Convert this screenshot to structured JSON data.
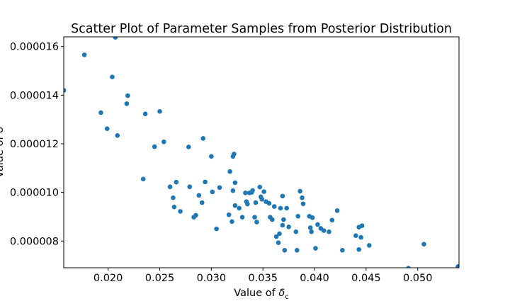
{
  "chart_data": {
    "type": "scatter",
    "title": "Scatter Plot of Parameter Samples from Posterior Distribution",
    "xlabel_prefix": "Value of ",
    "xlabel_symbol": "δ",
    "xlabel_sub": "c",
    "ylabel": "Value of δ",
    "xlim": [
      0.0157,
      0.054
    ],
    "ylim": [
      6.9e-06,
      1.64e-05
    ],
    "xticks": [
      0.02,
      0.025,
      0.03,
      0.035,
      0.04,
      0.045,
      0.05
    ],
    "xtick_labels": [
      "0.020",
      "0.025",
      "0.030",
      "0.035",
      "0.040",
      "0.045",
      "0.050"
    ],
    "yticks": [
      8e-06,
      1e-05,
      1.2e-05,
      1.4e-05,
      1.6e-05
    ],
    "ytick_labels": [
      "0.000008",
      "0.000010",
      "0.000012",
      "0.000014",
      "0.000016"
    ],
    "grid": false,
    "marker_color": "#1f77b4",
    "points": [
      [
        0.0157,
        1.42e-05
      ],
      [
        0.0177,
        1.566e-05
      ],
      [
        0.0207,
        1.638e-05
      ],
      [
        0.0204,
        1.475e-05
      ],
      [
        0.0219,
        1.398e-05
      ],
      [
        0.0218,
        1.365e-05
      ],
      [
        0.0193,
        1.328e-05
      ],
      [
        0.0199,
        1.262e-05
      ],
      [
        0.0209,
        1.234e-05
      ],
      [
        0.0236,
        1.323e-05
      ],
      [
        0.025,
        1.333e-05
      ],
      [
        0.0254,
        1.208e-05
      ],
      [
        0.0245,
        1.188e-05
      ],
      [
        0.0234,
        1.055e-05
      ],
      [
        0.0278,
        1.187e-05
      ],
      [
        0.0292,
        1.222e-05
      ],
      [
        0.03,
        1.148e-05
      ],
      [
        0.0322,
        1.158e-05
      ],
      [
        0.0321,
        1.148e-05
      ],
      [
        0.0318,
        1.086e-05
      ],
      [
        0.0323,
        1.04e-05
      ],
      [
        0.026,
        1.023e-05
      ],
      [
        0.0266,
        1.042e-05
      ],
      [
        0.0263,
        9.78e-06
      ],
      [
        0.0264,
        9.4e-06
      ],
      [
        0.027,
        9.22e-06
      ],
      [
        0.0279,
        1.023e-05
      ],
      [
        0.0283,
        8.98e-06
      ],
      [
        0.0285,
        9.06e-06
      ],
      [
        0.0288,
        9.88e-06
      ],
      [
        0.0291,
        9.58e-06
      ],
      [
        0.0294,
        1.043e-05
      ],
      [
        0.0301,
        1.002e-05
      ],
      [
        0.0305,
        8.5e-06
      ],
      [
        0.0308,
        1.02e-05
      ],
      [
        0.0317,
        9.08e-06
      ],
      [
        0.032,
        8.8e-06
      ],
      [
        0.0321,
        1.007e-05
      ],
      [
        0.0323,
        9.46e-06
      ],
      [
        0.0327,
        9.35e-06
      ],
      [
        0.033,
        8.98e-06
      ],
      [
        0.0333,
        9.98e-06
      ],
      [
        0.0334,
        9.62e-06
      ],
      [
        0.0335,
        9.52e-06
      ],
      [
        0.0337,
        9.98e-06
      ],
      [
        0.0339,
        1e-05
      ],
      [
        0.034,
        1.008e-05
      ],
      [
        0.0342,
        8.98e-06
      ],
      [
        0.0343,
        9.58e-06
      ],
      [
        0.0344,
        8.78e-06
      ],
      [
        0.0347,
        1.022e-05
      ],
      [
        0.0348,
        9.82e-06
      ],
      [
        0.0349,
        9.72e-06
      ],
      [
        0.0351,
        1.003e-05
      ],
      [
        0.0353,
        9.62e-06
      ],
      [
        0.0356,
        9.55e-06
      ],
      [
        0.0357,
        8.98e-06
      ],
      [
        0.0359,
        8.88e-06
      ],
      [
        0.0361,
        9.42e-06
      ],
      [
        0.0363,
        8.18e-06
      ],
      [
        0.0365,
        7.93e-06
      ],
      [
        0.0366,
        8.3e-06
      ],
      [
        0.0367,
        9.35e-06
      ],
      [
        0.0369,
        9.85e-06
      ],
      [
        0.0369,
        8.65e-06
      ],
      [
        0.037,
        8.88e-06
      ],
      [
        0.0371,
        7.62e-06
      ],
      [
        0.0373,
        9.35e-06
      ],
      [
        0.0375,
        8.58e-06
      ],
      [
        0.0382,
        8.38e-06
      ],
      [
        0.0383,
        7.62e-06
      ],
      [
        0.0384,
        9.02e-06
      ],
      [
        0.0386,
        1.005e-05
      ],
      [
        0.0388,
        9.78e-06
      ],
      [
        0.0389,
        9.53e-06
      ],
      [
        0.0395,
        9.02e-06
      ],
      [
        0.0396,
        8.55e-06
      ],
      [
        0.0397,
        8.38e-06
      ],
      [
        0.0398,
        8.96e-06
      ],
      [
        0.0401,
        7.7e-06
      ],
      [
        0.0403,
        8.68e-06
      ],
      [
        0.0406,
        8.52e-06
      ],
      [
        0.0409,
        8.43e-06
      ],
      [
        0.0414,
        8.38e-06
      ],
      [
        0.0417,
        8.86e-06
      ],
      [
        0.0422,
        9.25e-06
      ],
      [
        0.0427,
        7.62e-06
      ],
      [
        0.044,
        8.22e-06
      ],
      [
        0.0443,
        8.57e-06
      ],
      [
        0.0443,
        7.65e-06
      ],
      [
        0.0446,
        8.63e-06
      ],
      [
        0.0445,
        8.15e-06
      ],
      [
        0.0453,
        7.82e-06
      ],
      [
        0.0491,
        6.88e-06
      ],
      [
        0.0506,
        7.87e-06
      ],
      [
        0.0539,
        6.95e-06
      ]
    ]
  }
}
